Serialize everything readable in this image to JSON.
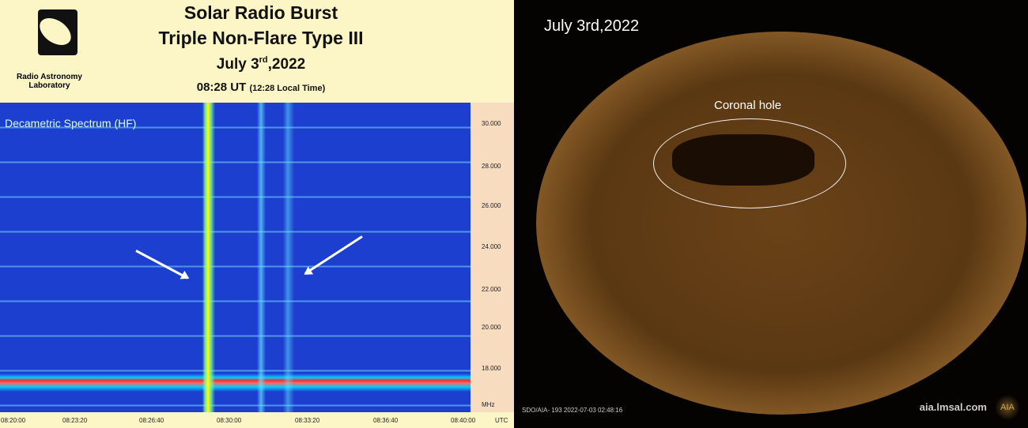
{
  "left_panel": {
    "title1": "Solar Radio Burst",
    "title2": "Triple Non-Flare Type III",
    "date_main": "July 3",
    "date_sup": "rd",
    "date_year": ",2022",
    "time": "08:28 UT",
    "local_time": "(12:28 Local Time)",
    "lab_name": "Radio Astronomy Laboratory",
    "spectrum_title": "Decametric Spectrum (HF)",
    "y_ticks": [
      "30.000",
      "28.000",
      "26.000",
      "24.000",
      "22.000",
      "20.000",
      "18.000"
    ],
    "y_unit": "MHz",
    "x_ticks": [
      "08:20:00",
      "08:23:20",
      "08:26:40",
      "08:30:00",
      "08:33:20",
      "08:36:40",
      "08:40:00"
    ],
    "x_unit": "UTC"
  },
  "right_panel": {
    "date": "July 3rd,2022",
    "annotation": "Coronal hole",
    "caption": "SDO/AIA- 193 2022-07-03 02:48:16",
    "website": "aia.lmsal.com",
    "logo_text": "AIA"
  }
}
